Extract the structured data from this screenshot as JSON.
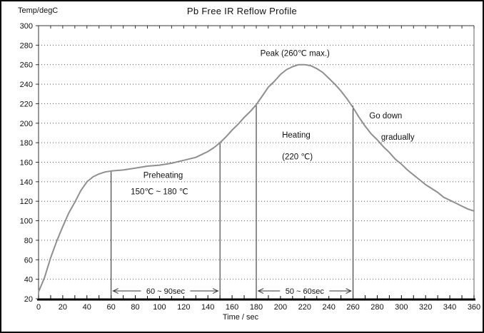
{
  "figure": {
    "title": "Pb Free IR Reflow Profile",
    "y_axis_label": "Temp/degC",
    "x_axis_label": "Time / sec"
  },
  "chart_data": {
    "type": "line",
    "title": "Pb Free IR Reflow Profile",
    "xlabel": "Time / sec",
    "ylabel": "Temp/degC",
    "xlim": [
      0,
      360
    ],
    "ylim": [
      20,
      300
    ],
    "x_ticks": [
      0,
      20,
      40,
      60,
      80,
      100,
      120,
      140,
      160,
      180,
      200,
      220,
      240,
      260,
      280,
      300,
      320,
      340,
      360
    ],
    "y_ticks": [
      20,
      40,
      60,
      80,
      100,
      120,
      140,
      160,
      180,
      200,
      220,
      240,
      260,
      280,
      300
    ],
    "x_minor_tick_step": 10,
    "grid": "horizontal-dotted",
    "legend": "none",
    "colors": {
      "curve": "#8f8f8f",
      "axis": "#000000",
      "grid": "#555555",
      "marker_line": "#222222",
      "arrow": "#333333",
      "text": "#111111"
    },
    "series": [
      {
        "name": "reflow-temperature-profile",
        "points": [
          [
            0,
            27
          ],
          [
            5,
            42
          ],
          [
            10,
            62
          ],
          [
            15,
            79
          ],
          [
            20,
            94
          ],
          [
            25,
            108
          ],
          [
            30,
            119
          ],
          [
            35,
            131
          ],
          [
            40,
            140
          ],
          [
            45,
            145
          ],
          [
            50,
            148
          ],
          [
            55,
            150
          ],
          [
            60,
            151
          ],
          [
            70,
            152
          ],
          [
            80,
            154
          ],
          [
            90,
            156
          ],
          [
            100,
            157
          ],
          [
            110,
            159
          ],
          [
            120,
            162
          ],
          [
            130,
            165
          ],
          [
            140,
            171
          ],
          [
            145,
            175
          ],
          [
            150,
            180
          ],
          [
            155,
            186
          ],
          [
            160,
            193
          ],
          [
            165,
            199
          ],
          [
            170,
            206
          ],
          [
            175,
            212
          ],
          [
            180,
            219
          ],
          [
            185,
            228
          ],
          [
            190,
            237
          ],
          [
            195,
            243
          ],
          [
            200,
            250
          ],
          [
            205,
            255
          ],
          [
            210,
            258
          ],
          [
            215,
            260
          ],
          [
            220,
            260
          ],
          [
            225,
            259
          ],
          [
            230,
            256
          ],
          [
            235,
            252
          ],
          [
            240,
            246
          ],
          [
            245,
            240
          ],
          [
            250,
            233
          ],
          [
            255,
            225
          ],
          [
            260,
            216
          ],
          [
            265,
            206
          ],
          [
            270,
            197
          ],
          [
            275,
            189
          ],
          [
            280,
            183
          ],
          [
            285,
            176
          ],
          [
            290,
            170
          ],
          [
            295,
            163
          ],
          [
            300,
            158
          ],
          [
            305,
            152
          ],
          [
            310,
            147
          ],
          [
            315,
            142
          ],
          [
            320,
            137
          ],
          [
            325,
            133
          ],
          [
            330,
            129
          ],
          [
            335,
            124
          ],
          [
            340,
            121
          ],
          [
            345,
            118
          ],
          [
            350,
            115
          ],
          [
            355,
            112
          ],
          [
            360,
            110
          ]
        ]
      }
    ],
    "marker_lines": [
      {
        "x": 60,
        "y_top": 151
      },
      {
        "x": 150,
        "y_top": 180
      },
      {
        "x": 180,
        "y_top": 219
      },
      {
        "x": 260,
        "y_top": 218
      }
    ],
    "span_arrows": [
      {
        "x1": 60,
        "x2": 150,
        "y": 28,
        "label": "60 ~ 90sec"
      },
      {
        "x1": 180,
        "x2": 260,
        "y": 28,
        "label": "50 ~ 60sec"
      }
    ],
    "annotations": [
      {
        "name": "peak-label",
        "text": "Peak (260℃ max.)",
        "x": 212,
        "y": 272
      },
      {
        "name": "preheating-label",
        "text": "Preheating",
        "x": 103,
        "y": 147
      },
      {
        "name": "preheating-range",
        "text": "150℃ ~ 180 ℃",
        "x": 100,
        "y": 130
      },
      {
        "name": "heating-label",
        "text": "Heating",
        "x": 213,
        "y": 188
      },
      {
        "name": "heating-temp",
        "text": "(220 ℃)",
        "x": 214,
        "y": 166
      },
      {
        "name": "cooldown-label-line1",
        "text": "Go down",
        "x": 287,
        "y": 208
      },
      {
        "name": "cooldown-label-line2",
        "text": "gradually",
        "x": 297,
        "y": 186
      }
    ]
  }
}
